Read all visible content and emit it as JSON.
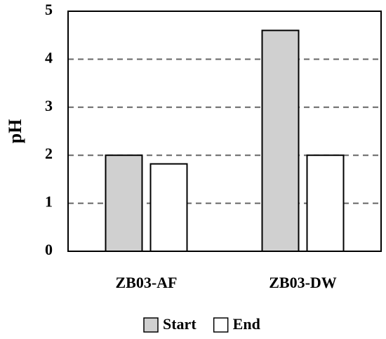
{
  "chart_data": {
    "type": "bar",
    "y_label": "pH",
    "categories": [
      "ZB03-AF",
      "ZB03-DW"
    ],
    "series": [
      {
        "name": "Start",
        "color": "#d0d0d0",
        "values": [
          2.0,
          4.6
        ]
      },
      {
        "name": "End",
        "color": "#ffffff",
        "values": [
          1.82,
          2.0
        ]
      }
    ],
    "ylim": [
      0,
      5
    ],
    "yticks": [
      0,
      1,
      2,
      3,
      4,
      5
    ],
    "grid": true,
    "legend": "bottom"
  }
}
